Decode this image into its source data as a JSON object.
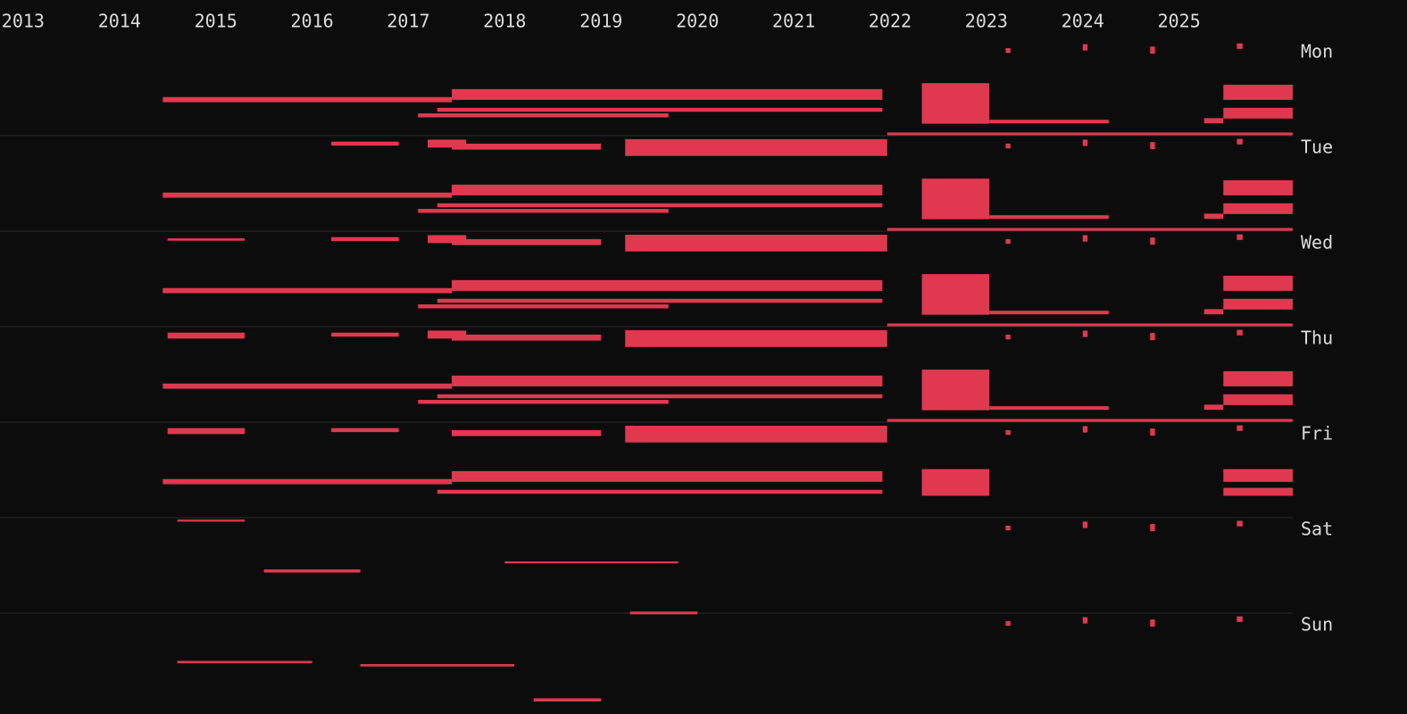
{
  "chart_data": {
    "type": "timeline",
    "color": "#e0394f",
    "xlim": [
      2012.76,
      2026.18
    ],
    "xticks": [
      2013,
      2014,
      2015,
      2016,
      2017,
      2018,
      2019,
      2020,
      2021,
      2022,
      2023,
      2024,
      2025
    ],
    "ylim": [
      0,
      168
    ],
    "yticks": [
      {
        "value": 0,
        "label": "Mon"
      },
      {
        "value": 24,
        "label": "Tue"
      },
      {
        "value": 48,
        "label": "Wed"
      },
      {
        "value": 72,
        "label": "Thu"
      },
      {
        "value": 96,
        "label": "Fri"
      },
      {
        "value": 120,
        "label": "Sat"
      },
      {
        "value": 144,
        "label": "Sun"
      }
    ],
    "grid": true,
    "marks": [
      [
        2014.45,
        2017.45,
        14.3,
        15.6
      ],
      [
        2017.45,
        2021.92,
        12.3,
        15.0
      ],
      [
        2017.3,
        2021.92,
        17.0,
        18.0
      ],
      [
        2017.1,
        2019.7,
        18.4,
        19.4
      ],
      [
        2022.33,
        2023.03,
        10.8,
        21.0
      ],
      [
        2023.03,
        2024.27,
        20.0,
        20.9
      ],
      [
        2025.46,
        2026.18,
        11.2,
        15.0
      ],
      [
        2025.46,
        2026.18,
        17.0,
        19.7
      ],
      [
        2025.26,
        2025.46,
        19.6,
        20.9
      ],
      [
        2019.25,
        2021.97,
        24.9,
        29.1
      ],
      [
        2021.97,
        2026.18,
        23.2,
        23.9
      ],
      [
        2017.45,
        2019.0,
        26.0,
        27.5
      ],
      [
        2016.2,
        2016.9,
        25.5,
        26.5
      ],
      [
        2017.2,
        2017.6,
        25.0,
        27.0
      ],
      [
        2014.45,
        2017.45,
        38.3,
        39.6
      ],
      [
        2017.45,
        2021.92,
        36.3,
        39.0
      ],
      [
        2017.3,
        2021.92,
        41.0,
        42.0
      ],
      [
        2017.1,
        2019.7,
        42.4,
        43.4
      ],
      [
        2022.33,
        2023.03,
        34.8,
        45.0
      ],
      [
        2023.03,
        2024.27,
        44.0,
        44.9
      ],
      [
        2025.46,
        2026.18,
        35.2,
        39.0
      ],
      [
        2025.46,
        2026.18,
        41.0,
        43.7
      ],
      [
        2025.26,
        2025.46,
        43.6,
        44.9
      ],
      [
        2019.25,
        2021.97,
        48.9,
        53.1
      ],
      [
        2021.97,
        2026.18,
        47.2,
        47.9
      ],
      [
        2017.45,
        2019.0,
        50.0,
        51.5
      ],
      [
        2016.2,
        2016.9,
        49.5,
        50.5
      ],
      [
        2014.5,
        2015.3,
        49.8,
        50.4
      ],
      [
        2017.2,
        2017.6,
        49.0,
        51.0
      ],
      [
        2014.45,
        2017.45,
        62.3,
        63.6
      ],
      [
        2017.45,
        2021.92,
        60.3,
        63.0
      ],
      [
        2017.3,
        2021.92,
        65.0,
        66.0
      ],
      [
        2017.1,
        2019.7,
        66.4,
        67.4
      ],
      [
        2022.33,
        2023.03,
        58.8,
        69.0
      ],
      [
        2023.03,
        2024.27,
        68.0,
        68.9
      ],
      [
        2025.46,
        2026.18,
        59.2,
        63.0
      ],
      [
        2025.46,
        2026.18,
        65.0,
        67.7
      ],
      [
        2025.26,
        2025.46,
        67.6,
        68.9
      ],
      [
        2019.25,
        2021.97,
        72.9,
        77.1
      ],
      [
        2021.97,
        2026.18,
        71.2,
        71.9
      ],
      [
        2017.45,
        2019.0,
        74.0,
        75.5
      ],
      [
        2016.2,
        2016.9,
        73.5,
        74.5
      ],
      [
        2014.5,
        2015.3,
        73.5,
        75.0
      ],
      [
        2017.2,
        2017.6,
        73.0,
        75.0
      ],
      [
        2014.45,
        2017.45,
        86.3,
        87.6
      ],
      [
        2017.45,
        2021.92,
        84.3,
        87.0
      ],
      [
        2017.3,
        2021.92,
        89.0,
        90.0
      ],
      [
        2017.1,
        2019.7,
        90.4,
        91.4
      ],
      [
        2022.33,
        2023.03,
        82.8,
        93.0
      ],
      [
        2023.03,
        2024.27,
        92.0,
        92.9
      ],
      [
        2025.46,
        2026.18,
        83.2,
        87.0
      ],
      [
        2025.46,
        2026.18,
        89.0,
        91.7
      ],
      [
        2025.26,
        2025.46,
        91.6,
        92.9
      ],
      [
        2019.25,
        2021.97,
        96.9,
        101.1
      ],
      [
        2021.97,
        2026.18,
        95.2,
        95.9
      ],
      [
        2017.45,
        2019.0,
        98.0,
        99.5
      ],
      [
        2014.5,
        2015.3,
        97.5,
        99.0
      ],
      [
        2016.2,
        2016.9,
        97.5,
        98.5
      ],
      [
        2014.45,
        2017.45,
        110.3,
        111.6
      ],
      [
        2017.45,
        2021.92,
        108.3,
        111.0
      ],
      [
        2017.3,
        2021.92,
        113.0,
        114.0
      ],
      [
        2022.33,
        2023.03,
        107.8,
        114.5
      ],
      [
        2025.46,
        2026.18,
        107.8,
        111.0
      ],
      [
        2025.46,
        2026.18,
        112.5,
        114.5
      ],
      [
        2014.6,
        2015.3,
        120.5,
        121.0
      ],
      [
        2018.0,
        2019.8,
        131.0,
        131.5
      ],
      [
        2015.5,
        2016.5,
        133.0,
        133.8
      ],
      [
        2019.3,
        2020.0,
        143.6,
        144.3
      ],
      [
        2014.6,
        2016.0,
        156.0,
        156.6
      ],
      [
        2016.5,
        2018.1,
        156.8,
        157.4
      ],
      [
        2018.3,
        2019.0,
        165.4,
        166.2
      ],
      [
        2023.2,
        2023.25,
        2.0,
        3.2
      ],
      [
        2024.0,
        2024.05,
        1.0,
        2.6
      ],
      [
        2024.7,
        2024.75,
        1.6,
        3.4
      ],
      [
        2025.6,
        2025.66,
        0.8,
        2.2
      ],
      [
        2023.2,
        2023.25,
        26.0,
        27.2
      ],
      [
        2024.0,
        2024.05,
        25.0,
        26.6
      ],
      [
        2024.7,
        2024.75,
        25.6,
        27.4
      ],
      [
        2025.6,
        2025.66,
        24.8,
        26.2
      ],
      [
        2023.2,
        2023.25,
        50.0,
        51.2
      ],
      [
        2024.0,
        2024.05,
        49.0,
        50.6
      ],
      [
        2024.7,
        2024.75,
        49.6,
        51.4
      ],
      [
        2025.6,
        2025.66,
        48.8,
        50.2
      ],
      [
        2023.2,
        2023.25,
        74.0,
        75.2
      ],
      [
        2024.0,
        2024.05,
        73.0,
        74.6
      ],
      [
        2024.7,
        2024.75,
        73.6,
        75.4
      ],
      [
        2025.6,
        2025.66,
        72.8,
        74.2
      ],
      [
        2023.2,
        2023.25,
        98.0,
        99.2
      ],
      [
        2024.0,
        2024.05,
        97.0,
        98.6
      ],
      [
        2024.7,
        2024.75,
        97.6,
        99.4
      ],
      [
        2025.6,
        2025.66,
        96.8,
        98.2
      ],
      [
        2023.2,
        2023.25,
        122.0,
        123.2
      ],
      [
        2024.0,
        2024.05,
        121.0,
        122.6
      ],
      [
        2024.7,
        2024.75,
        121.6,
        123.4
      ],
      [
        2025.6,
        2025.66,
        120.8,
        122.2
      ],
      [
        2023.2,
        2023.25,
        146.0,
        147.2
      ],
      [
        2024.0,
        2024.05,
        145.0,
        146.6
      ],
      [
        2024.7,
        2024.75,
        145.6,
        147.4
      ],
      [
        2025.6,
        2025.66,
        144.8,
        146.2
      ]
    ]
  }
}
